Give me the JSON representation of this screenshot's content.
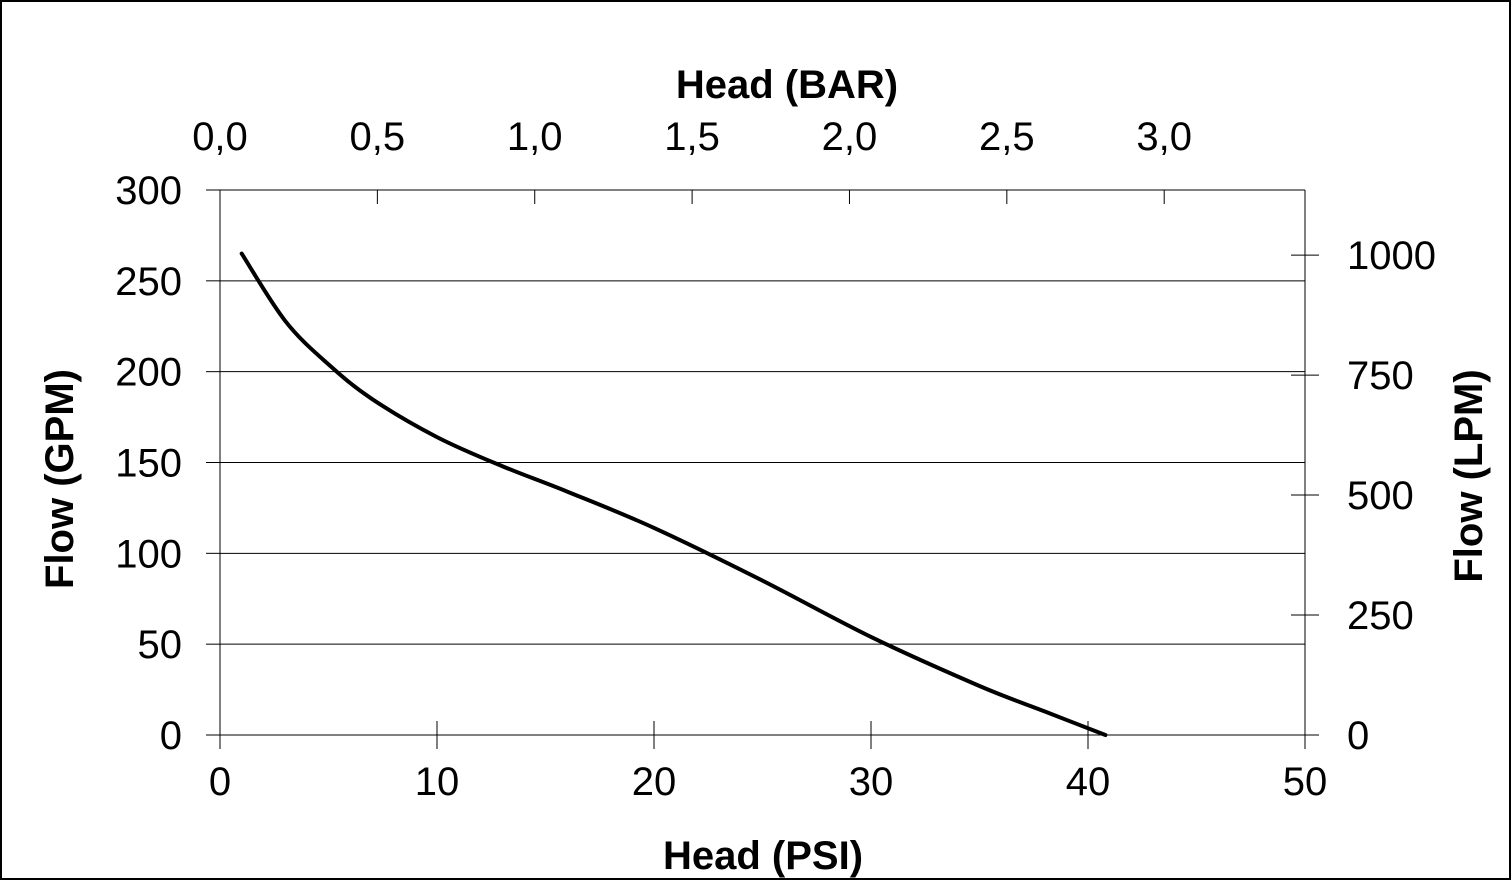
{
  "chart_data": {
    "type": "line",
    "xlabel": "Head (PSI)",
    "x2label": "Head (BAR)",
    "ylabel": "Flow (GPM)",
    "y2label": "Flow (LPM)",
    "xlim": [
      0,
      50
    ],
    "ylim": [
      0,
      300
    ],
    "grid": "horizontal",
    "x_ticks": [
      "0",
      "10",
      "20",
      "30",
      "40",
      "50"
    ],
    "y_ticks": [
      "0",
      "50",
      "100",
      "150",
      "200",
      "250",
      "300"
    ],
    "x2_ticks": [
      "0,0",
      "0,5",
      "1,0",
      "1,5",
      "2,0",
      "2,5",
      "3,0"
    ],
    "y2_ticks": [
      "0",
      "250",
      "500",
      "750",
      "1000"
    ],
    "colors": {
      "line": "#000000",
      "grid": "#000000",
      "background": "#ffffff"
    },
    "series": [
      {
        "x": [
          1,
          3,
          5,
          7,
          10,
          13,
          16,
          20,
          25,
          30,
          35,
          38,
          40.8
        ],
        "y": [
          265,
          228,
          204,
          185,
          164,
          148,
          134,
          114,
          85,
          54,
          27,
          13,
          0
        ]
      }
    ]
  }
}
